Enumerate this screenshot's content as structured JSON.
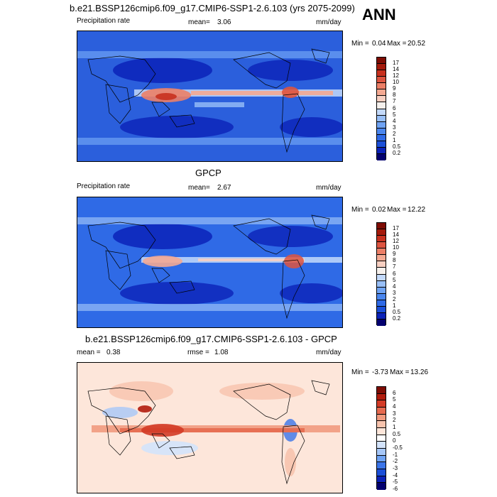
{
  "season": "ANN",
  "colors": {
    "prec_scale": [
      "#03006f",
      "#0b22b8",
      "#1b4fd8",
      "#2f6ae6",
      "#4a86ee",
      "#6fa3f3",
      "#98bff7",
      "#c3d9fa",
      "#f5f0ec",
      "#f7cfc1",
      "#f4a992",
      "#ec7f67",
      "#dd5440",
      "#c8311f",
      "#a41a0b",
      "#7e0c03"
    ],
    "diff_scale": [
      "#03006f",
      "#0b22b8",
      "#1b4fd8",
      "#3a74e8",
      "#6fa3f3",
      "#a6c7f8",
      "#d3e3fb",
      "#ffffff",
      "#fde6da",
      "#f7c3ad",
      "#f19a7e",
      "#e66a4f",
      "#d33b26",
      "#b11b0c",
      "#7e0c03"
    ]
  },
  "panels": [
    {
      "title": "b.e21.BSSP126cmip6.f09_g17.CMIP6-SSP1-2.6.103 (yrs 2075-2099)",
      "left_label": "Precipitation rate",
      "mean_label": "mean=",
      "mean_value": "3.06",
      "units": "mm/day",
      "min_label": "Min =",
      "min_value": "0.04",
      "max_label": "Max =",
      "max_value": "20.52",
      "levels": [
        "17",
        "14",
        "12",
        "10",
        "9",
        "8",
        "7",
        "6",
        "5",
        "4",
        "3",
        "2",
        "1",
        "0.5",
        "0.2"
      ]
    },
    {
      "title": "GPCP",
      "left_label": "Precipitation rate",
      "mean_label": "mean=",
      "mean_value": "2.67",
      "units": "mm/day",
      "min_label": "Min =",
      "min_value": "0.02",
      "max_label": "Max =",
      "max_value": "12.22",
      "levels": [
        "17",
        "14",
        "12",
        "10",
        "9",
        "8",
        "7",
        "6",
        "5",
        "4",
        "3",
        "2",
        "1",
        "0.5",
        "0.2"
      ]
    },
    {
      "title": "b.e21.BSSP126cmip6.f09_g17.CMIP6-SSP1-2.6.103 - GPCP",
      "mean_label": "mean =",
      "mean_value": "0.38",
      "rmse_label": "rmse =",
      "rmse_value": "1.08",
      "units": "mm/day",
      "min_label": "Min =",
      "min_value": "-3.73",
      "max_label": "Max =",
      "max_value": "13.26",
      "levels": [
        "6",
        "5",
        "4",
        "3",
        "2",
        "1",
        "0.5",
        "0",
        "-0.5",
        "-1",
        "-2",
        "-3",
        "-4",
        "-5",
        "-6"
      ]
    }
  ]
}
